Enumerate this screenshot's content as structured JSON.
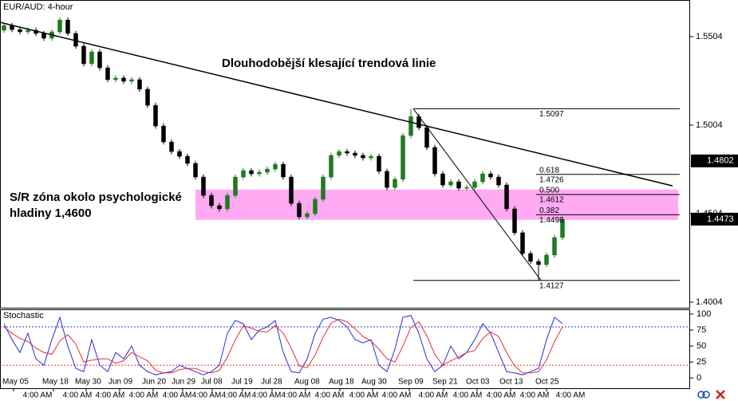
{
  "chart_data": [
    {
      "type": "candlestick",
      "title": "EUR/AUD: 4-hour",
      "xlim": [
        -0.5,
        86
      ],
      "ylim": [
        1.3968,
        1.5711
      ],
      "yticks": [
        1.5504,
        1.5004,
        1.4504,
        1.4004
      ],
      "up_color": "#1f7a1f",
      "down_color": "#000000",
      "open": [
        1.554,
        1.5567,
        1.5544,
        1.5531,
        1.554,
        1.5522,
        1.5495,
        1.5531,
        1.5598,
        1.5522,
        1.545,
        1.5351,
        1.5418,
        1.5328,
        1.5261,
        1.527,
        1.5252,
        1.5261,
        1.5207,
        1.5116,
        1.4999,
        1.4909,
        1.4855,
        1.4828,
        1.4788,
        1.4711,
        1.4607,
        1.4549,
        1.4531,
        1.4607,
        1.4711,
        1.4747,
        1.4729,
        1.4738,
        1.4756,
        1.4783,
        1.4711,
        1.4562,
        1.4486,
        1.4504,
        1.4585,
        1.4711,
        1.4833,
        1.4855,
        1.4846,
        1.4833,
        1.4819,
        1.4828,
        1.4743,
        1.4652,
        1.4698,
        1.4945,
        1.5053,
        1.499,
        1.4878,
        1.4729,
        1.4666,
        1.4684,
        1.4648,
        1.4652,
        1.4684,
        1.4729,
        1.4711,
        1.4666,
        1.4531,
        1.4396,
        1.4279,
        1.4234,
        1.4216,
        1.427,
        1.4369
      ],
      "high": [
        1.5582,
        1.5582,
        1.5559,
        1.5555,
        1.5555,
        1.5537,
        1.5546,
        1.5613,
        1.5613,
        1.5537,
        1.5465,
        1.5433,
        1.5433,
        1.5343,
        1.5285,
        1.5285,
        1.5276,
        1.5276,
        1.5222,
        1.5131,
        1.5014,
        1.4924,
        1.487,
        1.4843,
        1.4803,
        1.4726,
        1.4622,
        1.4564,
        1.4622,
        1.4726,
        1.4762,
        1.4762,
        1.4753,
        1.4771,
        1.4798,
        1.4798,
        1.4726,
        1.4577,
        1.4519,
        1.46,
        1.4726,
        1.4848,
        1.487,
        1.487,
        1.4861,
        1.4848,
        1.4843,
        1.4843,
        1.4758,
        1.4713,
        1.496,
        1.5097,
        1.5068,
        1.5005,
        1.4893,
        1.4744,
        1.4699,
        1.4699,
        1.4667,
        1.4699,
        1.4744,
        1.4744,
        1.4726,
        1.4681,
        1.4546,
        1.4411,
        1.4294,
        1.4249,
        1.4285,
        1.4384,
        1.4487
      ],
      "low": [
        1.5525,
        1.5529,
        1.5516,
        1.5516,
        1.5507,
        1.548,
        1.548,
        1.5516,
        1.5507,
        1.5435,
        1.5336,
        1.5336,
        1.5313,
        1.5246,
        1.5246,
        1.5237,
        1.5237,
        1.5192,
        1.5101,
        1.4984,
        1.4894,
        1.484,
        1.4813,
        1.4773,
        1.4696,
        1.4592,
        1.4534,
        1.4516,
        1.4516,
        1.4592,
        1.4696,
        1.4714,
        1.4714,
        1.4723,
        1.4741,
        1.4696,
        1.4547,
        1.4471,
        1.4471,
        1.4489,
        1.457,
        1.4696,
        1.4818,
        1.4831,
        1.4818,
        1.4804,
        1.4804,
        1.4728,
        1.4637,
        1.4637,
        1.4683,
        1.493,
        1.4975,
        1.4863,
        1.4714,
        1.4651,
        1.4651,
        1.4633,
        1.4633,
        1.4637,
        1.4669,
        1.4696,
        1.4651,
        1.4516,
        1.4381,
        1.4264,
        1.4219,
        1.4127,
        1.4201,
        1.4255,
        1.4354
      ],
      "close": [
        1.5567,
        1.5544,
        1.5531,
        1.554,
        1.5522,
        1.5495,
        1.5531,
        1.5598,
        1.5522,
        1.545,
        1.5351,
        1.5418,
        1.5328,
        1.5261,
        1.527,
        1.5252,
        1.5261,
        1.5207,
        1.5116,
        1.4999,
        1.4909,
        1.4855,
        1.4828,
        1.4788,
        1.4711,
        1.4607,
        1.4549,
        1.4531,
        1.4607,
        1.4711,
        1.4747,
        1.4729,
        1.4738,
        1.4756,
        1.4783,
        1.4711,
        1.4562,
        1.4486,
        1.4504,
        1.4585,
        1.4711,
        1.4833,
        1.4855,
        1.4846,
        1.4833,
        1.4819,
        1.4828,
        1.4743,
        1.4652,
        1.4698,
        1.4945,
        1.5053,
        1.499,
        1.4878,
        1.4729,
        1.4666,
        1.4684,
        1.4648,
        1.4652,
        1.4684,
        1.4729,
        1.4711,
        1.4666,
        1.4531,
        1.4396,
        1.4279,
        1.4234,
        1.4216,
        1.427,
        1.4369,
        1.4472
      ],
      "xticks": [
        {
          "value": 1.2,
          "label": "May 05"
        },
        {
          "value": 6.2,
          "label": "May 18"
        },
        {
          "value": 10.3,
          "label": "May 30"
        },
        {
          "value": 14.5,
          "label": "Jun 09"
        },
        {
          "value": 18.7,
          "label": "Jun 20"
        },
        {
          "value": 22.4,
          "label": "Jun 29"
        },
        {
          "value": 26.1,
          "label": "Jul 08"
        },
        {
          "value": 29.9,
          "label": "Jul 19"
        },
        {
          "value": 33.6,
          "label": "Jul 28"
        },
        {
          "value": 37.8,
          "label": "Aug 08"
        },
        {
          "value": 42.1,
          "label": "Aug 18"
        },
        {
          "value": 46.2,
          "label": "Aug 30"
        },
        {
          "value": 50.8,
          "label": "Sep 09"
        },
        {
          "value": 55.1,
          "label": "Sep 21"
        },
        {
          "value": 59.3,
          "label": "Oct 03"
        },
        {
          "value": 63.5,
          "label": "Oct 13"
        },
        {
          "value": 68.0,
          "label": "Oct 25"
        }
      ],
      "xtick_times": [
        "4:00 AM",
        "4:00 AM",
        "4:00 AM",
        "4:00 AM",
        "4:00 AM",
        "4:00 AM",
        "4:00 AM",
        "4:00 AM",
        "4:00 AM",
        "4:00 AM",
        "4:00 AM",
        "4:00 AM",
        "4:00 AM",
        "4:00 AM",
        "4:00 AM",
        "4:00 AM",
        "4:00 AM"
      ],
      "price_markers": [
        1.4802,
        1.4473
      ],
      "trendline": {
        "start": [
          -0.5,
          1.5585
        ],
        "end": [
          83.8,
          1.4661
        ]
      },
      "zone": {
        "start": 24,
        "end": 84.5,
        "low": 1.4469,
        "high": 1.464
      },
      "fib": {
        "start": 51.3,
        "end": 84.7,
        "level_start": 66.7,
        "low_x": 67.3,
        "high": 1.5097,
        "low": 1.4127,
        "levels": [
          {
            "ratio": 0.618,
            "value": 1.4726
          },
          {
            "ratio": {
              "value": 0.5,
              "label": "0.500"
            },
            "value": 1.4612
          },
          {
            "ratio": 0.382,
            "value": 1.4498
          }
        ]
      },
      "annotations": [
        "Dlouhodobější klesající trendová linie"
      ],
      "zone_label": [
        "S/R zóna okolo psychologické",
        "hladiny 1,4600"
      ]
    },
    {
      "type": "line",
      "title": "Stochastic",
      "xlim": [
        -0.5,
        86
      ],
      "ylim": [
        -16,
        107.5
      ],
      "yticks": [
        100,
        75,
        50,
        25,
        0
      ],
      "levels": [
        {
          "value": 80,
          "color": "#3a3acc"
        },
        {
          "value": 20,
          "color": "#e03030"
        }
      ],
      "series": [
        {
          "color": "#2b2bd6",
          "values": [
            85,
            60,
            40,
            70,
            30,
            20,
            60,
            95,
            50,
            15,
            10,
            60,
            20,
            10,
            40,
            30,
            50,
            20,
            10,
            5,
            8,
            10,
            20,
            15,
            10,
            5,
            10,
            20,
            70,
            90,
            85,
            60,
            75,
            80,
            90,
            40,
            10,
            8,
            30,
            70,
            92,
            95,
            90,
            80,
            60,
            55,
            60,
            20,
            10,
            45,
            95,
            98,
            70,
            30,
            10,
            20,
            50,
            30,
            40,
            60,
            85,
            70,
            40,
            10,
            8,
            5,
            10,
            15,
            60,
            95,
            85
          ]
        },
        {
          "color": "#e03030",
          "values": [
            80,
            70,
            62,
            57,
            47,
            40,
            37,
            58,
            68,
            53,
            25,
            28,
            30,
            30,
            23,
            27,
            40,
            33,
            27,
            12,
            8,
            8,
            13,
            15,
            15,
            10,
            8,
            12,
            33,
            60,
            82,
            78,
            73,
            72,
            82,
            70,
            47,
            19,
            16,
            36,
            64,
            86,
            92,
            88,
            77,
            65,
            58,
            45,
            30,
            25,
            50,
            79,
            88,
            66,
            37,
            20,
            27,
            33,
            40,
            43,
            62,
            72,
            65,
            40,
            19,
            8,
            8,
            10,
            28,
            57,
            80
          ]
        }
      ]
    }
  ]
}
